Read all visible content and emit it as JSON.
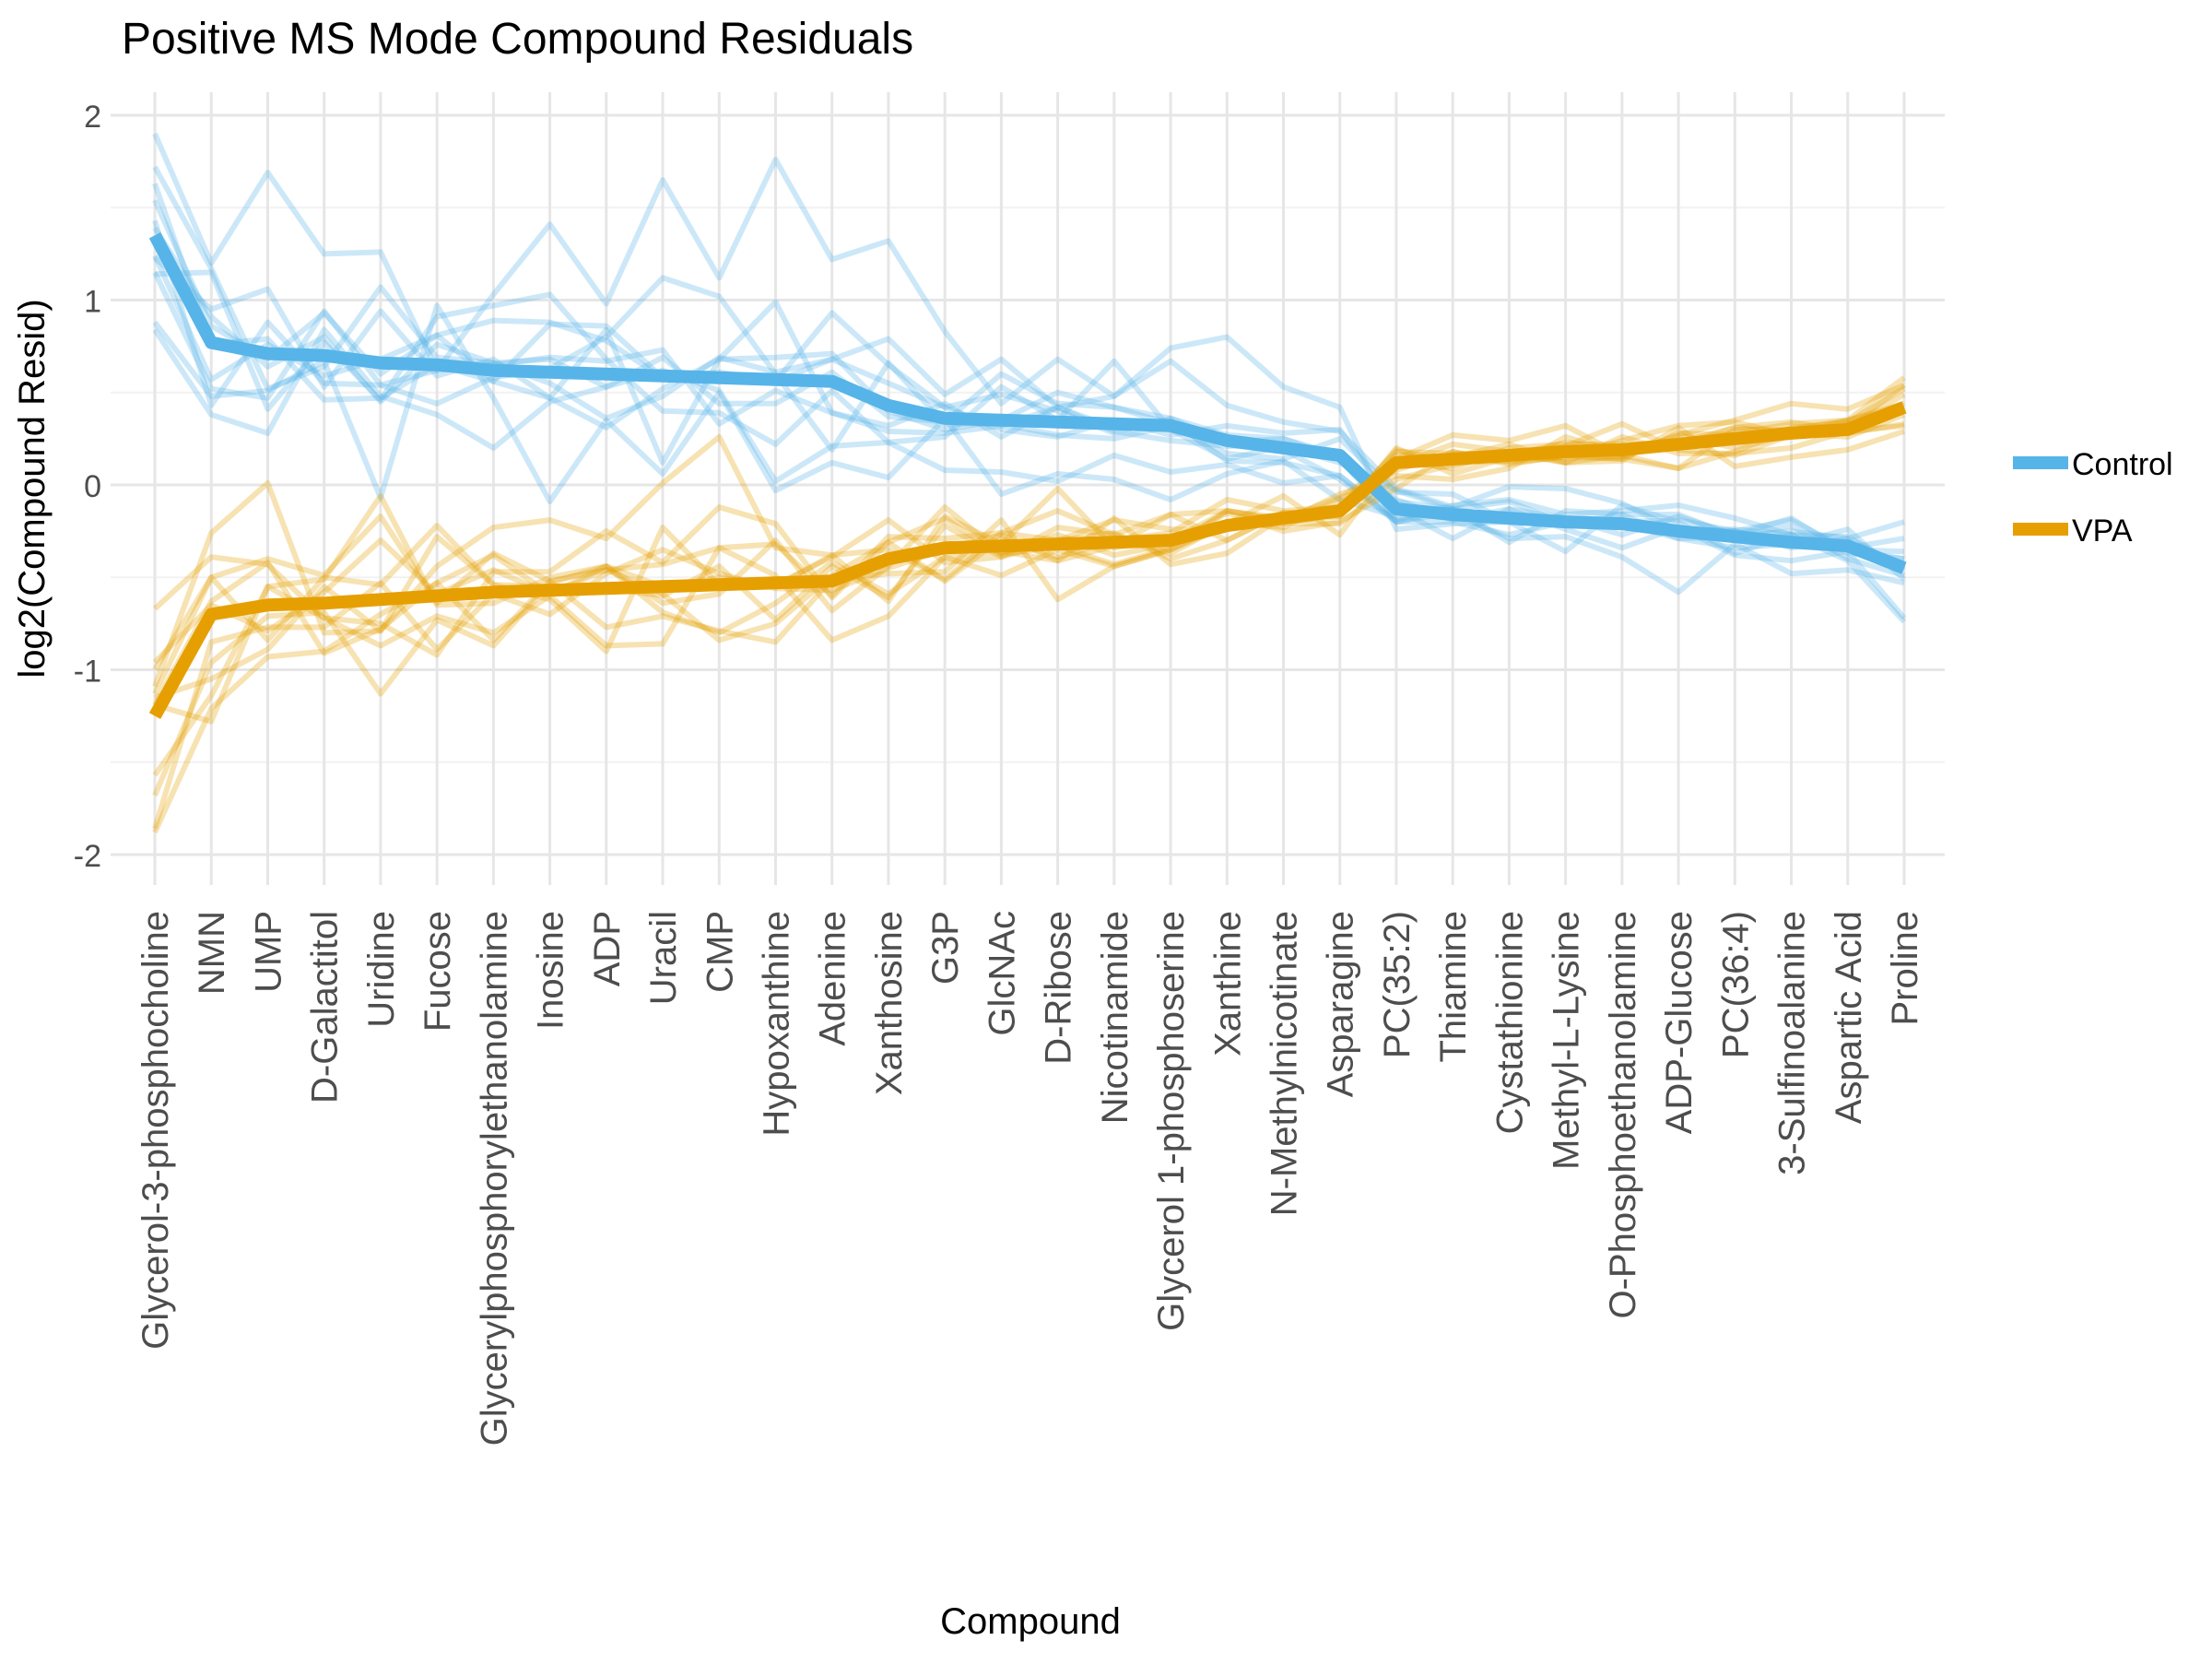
{
  "chart_data": {
    "type": "line",
    "title": "Positive MS Mode Compound Residuals",
    "xlabel": "Compound",
    "ylabel": "log2(Compound Resid)",
    "ylim": [
      -2.2,
      2.1
    ],
    "yticks": [
      2,
      1,
      0,
      -1,
      -2
    ],
    "ytick_labels": [
      "2",
      "1",
      "0",
      "-1",
      "-2"
    ],
    "grid": true,
    "legend_position": "right",
    "categories": [
      "Glycerol-3-phosphocholine",
      "NMN",
      "UMP",
      "D-Galactitol",
      "Uridine",
      "Fucose",
      "Glycerylphosphorylethanolamine",
      "Inosine",
      "ADP",
      "Uracil",
      "CMP",
      "Hypoxanthine",
      "Adenine",
      "Xanthosine",
      "G3P",
      "GlcNAc",
      "D-Ribose",
      "Nicotinamide",
      "Glycerol 1-phosphoserine",
      "Xanthine",
      "N-Methylnicotinate",
      "Asparagine",
      "PC(35:2)",
      "Thiamine",
      "Cystathionine",
      "Methyl-L-Lysine",
      "O-Phosphoethanolamine",
      "ADP-Glucose",
      "PC(36:4)",
      "3-Sulfinoalanine",
      "Aspartic Acid",
      "Proline"
    ],
    "series": [
      {
        "name": "Control",
        "color": "#56B4E9",
        "values": [
          1.35,
          0.77,
          0.71,
          0.7,
          0.66,
          0.65,
          0.62,
          0.61,
          0.6,
          0.59,
          0.58,
          0.57,
          0.56,
          0.43,
          0.36,
          0.35,
          0.34,
          0.33,
          0.32,
          0.24,
          0.2,
          0.16,
          -0.13,
          -0.16,
          -0.18,
          -0.2,
          -0.21,
          -0.25,
          -0.28,
          -0.31,
          -0.33,
          -0.45
        ]
      },
      {
        "name": "VPA",
        "color": "#E69F00",
        "values": [
          -1.25,
          -0.7,
          -0.65,
          -0.64,
          -0.62,
          -0.6,
          -0.58,
          -0.57,
          -0.56,
          -0.55,
          -0.54,
          -0.53,
          -0.52,
          -0.4,
          -0.34,
          -0.33,
          -0.32,
          -0.31,
          -0.3,
          -0.22,
          -0.18,
          -0.14,
          0.12,
          0.14,
          0.16,
          0.18,
          0.19,
          0.22,
          0.25,
          0.28,
          0.3,
          0.42
        ]
      }
    ],
    "replicate_noise": {
      "Control": [
        [
          0.55,
          0.43,
          0.98,
          0.55,
          0.6,
          -0.03,
          0.41,
          0.8,
          0.38,
          1.06,
          0.54,
          1.19,
          0.66,
          0.89,
          0.47,
          0.09,
          0.34,
          0.15,
          0.42,
          0.56,
          0.33,
          0.26,
          -0.11,
          -0.05,
          -0.02,
          -0.16,
          0.1,
          0.05,
          -0.09,
          0.04,
          -0.08,
          -0.29
        ],
        [
          0.19,
          0.09,
          -0.03,
          0.23,
          -0.06,
          0.16,
          -0.06,
          0.26,
          0.26,
          -0.01,
          0.03,
          -0.01,
          0.37,
          0.22,
          0.06,
          0.14,
          0.06,
          -0.05,
          0.04,
          -0.01,
          0.05,
          -0.0,
          0.05,
          -0.03,
          0.05,
          0.02,
          -0.06,
          0.08,
          0.01,
          0.13,
          -0.04,
          0.05
        ],
        [
          -0.47,
          -0.29,
          -0.2,
          -0.03,
          -0.73,
          0.32,
          -0.15,
          -0.7,
          -0.25,
          -0.53,
          -0.08,
          -0.6,
          -0.44,
          -0.39,
          0.0,
          -0.4,
          -0.28,
          -0.3,
          -0.4,
          -0.18,
          -0.07,
          -0.24,
          -0.04,
          0.01,
          -0.11,
          -0.08,
          -0.18,
          -0.33,
          -0.04,
          -0.17,
          -0.13,
          -0.08
        ],
        [
          -0.51,
          -0.39,
          -0.43,
          0.14,
          -0.18,
          -0.27,
          -0.42,
          -0.16,
          -0.07,
          0.03,
          -0.07,
          -0.55,
          -0.35,
          -0.2,
          -0.28,
          -0.28,
          -0.32,
          -0.17,
          -0.25,
          -0.13,
          -0.19,
          -0.11,
          -0.06,
          0.05,
          0.1,
          0.04,
          0.07,
          0.14,
          0.1,
          0.04,
          0.05,
          0.0
        ],
        [
          -0.11,
          -0.2,
          0.05,
          -0.11,
          0.02,
          0.16,
          0.27,
          0.27,
          0.18,
          -0.01,
          -0.01,
          -0.01,
          0.12,
          0.36,
          0.13,
          0.33,
          0.08,
          0.15,
          0.35,
          0.19,
          0.14,
          0.13,
          0.11,
          0.04,
          0.17,
          0.18,
          0.11,
          -0.0,
          0.04,
          0.04,
          -0.02,
          0.09
        ],
        [
          0.37,
          0.4,
          -0.19,
          -0.06,
          0.41,
          0.04,
          0.04,
          -0.06,
          -0.24,
          -0.11,
          0.11,
          0.04,
          0.12,
          0.12,
          0.06,
          -0.05,
          -0.08,
          0.02,
          -0.05,
          0.08,
          0.08,
          0.14,
          -0.0,
          -0.13,
          0.05,
          -0.04,
          -0.13,
          0.02,
          -0.1,
          -0.1,
          -0.03,
          -0.27
        ],
        [
          -0.2,
          -0.25,
          -0.24,
          0.24,
          -0.12,
          -0.21,
          -0.04,
          0.02,
          0.2,
          0.53,
          0.44,
          0.03,
          -0.37,
          0.23,
          -0.03,
          -0.02,
          -0.07,
          -0.08,
          0.0,
          0.0,
          -0.01,
          -0.13,
          -0.07,
          0.03,
          -0.13,
          0.06,
          0.05,
          -0.04,
          -0.0,
          0.09,
          -0.07,
          -0.04
        ],
        [
          0.28,
          -0.01,
          0.08,
          -0.24,
          -0.19,
          0.0,
          -0.06,
          -0.14,
          0.24,
          -0.47,
          0.1,
          0.42,
          -0.17,
          -0.11,
          0.08,
          -0.09,
          0.08,
          -0.02,
          0.03,
          -0.11,
          -0.08,
          -0.11,
          -0.07,
          0.01,
          -0.01,
          0.02,
          -0.0,
          0.01,
          0.03,
          0.12,
          -0.02,
          0.05
        ],
        [
          -0.12,
          0.18,
          0.35,
          -0.17,
          0.28,
          -0.06,
          0.06,
          -0.14,
          -0.29,
          -0.07,
          0.1,
          0.12,
          0.15,
          -0.03,
          -0.06,
          0.0,
          0.16,
          0.09,
          0.01,
          -0.07,
          -0.06,
          0.09,
          0.09,
          0.11,
          -0.02,
          -0.02,
          -0.0,
          -0.04,
          -0.06,
          -0.01,
          0.09,
          -0.06
        ],
        [
          0.08,
          -0.34,
          0.17,
          -0.15,
          -0.12,
          -0.03,
          0.03,
          0.08,
          0.07,
          0.14,
          -0.25,
          -0.06,
          -0.17,
          -0.14,
          -0.08,
          -0.03,
          0.08,
          -0.04,
          -0.08,
          -0.03,
          0.01,
          -0.02,
          -0.07,
          -0.04,
          -0.09,
          -0.0,
          0.01,
          0.06,
          0.03,
          -0.03,
          0.04,
          -0.01
        ],
        [
          0.04,
          0.14,
          -0.07,
          0.1,
          -0.21,
          0.11,
          0.04,
          0.07,
          -0.07,
          0.1,
          -0.14,
          -0.13,
          0.05,
          -0.06,
          -0.02,
          0.25,
          0.1,
          0.09,
          0.04,
          0.03,
          0.05,
          -0.02,
          0.04,
          0.03,
          -0.0,
          -0.02,
          -0.02,
          -0.02,
          0.03,
          -0.01,
          -0.01,
          0.16
        ],
        [
          -0.21,
          0.38,
          -0.3,
          0.07,
          -0.2,
          0.26,
          0.35,
          0.42,
          0.08,
          -0.19,
          -0.19,
          -0.35,
          -0.05,
          -0.2,
          -0.1,
          0.18,
          0.01,
          0.34,
          -0.02,
          -0.1,
          0.01,
          -0.04,
          0.1,
          0.03,
          0.09,
          -0.01,
          0.05,
          0.09,
          0.0,
          0.06,
          0.04,
          0.25
        ]
      ],
      "VPA": [
        [
          0.16,
          0.44,
          0.66,
          -0.16,
          -0.17,
          0.16,
          0.35,
          0.38,
          0.27,
          0.56,
          0.8,
          0.19,
          0.14,
          -0.23,
          0.17,
          0.01,
          0.3,
          -0.03,
          -0.0,
          0.08,
          -0.01,
          0.01,
          0.06,
          0.03,
          0.01,
          -0.06,
          -0.06,
          0.09,
          -0.15,
          -0.13,
          -0.11,
          -0.13
        ],
        [
          0.1,
          -0.35,
          -0.24,
          0.09,
          -0.17,
          0.32,
          0.04,
          -0.05,
          -0.34,
          0.32,
          0.0,
          -0.02,
          0.14,
          0.05,
          -0.17,
          0.07,
          0.18,
          0.04,
          -0.07,
          0.01,
          0.12,
          -0.13,
          0.02,
          0.13,
          0.08,
          0.14,
          -0.03,
          0.05,
          0.1,
          0.16,
          0.11,
          0.12
        ],
        [
          -0.61,
          -0.15,
          -0.12,
          -0.13,
          0.09,
          -0.29,
          -0.01,
          -0.13,
          0.08,
          0.2,
          0.06,
          -0.03,
          -0.05,
          -0.05,
          -0.01,
          0.06,
          -0.09,
          -0.02,
          0.14,
          -0.08,
          0.03,
          -0.02,
          0.07,
          -0.02,
          0.01,
          0.03,
          0.14,
          -0.03,
          -0.09,
          -0.01,
          -0.02,
          -0.09
        ],
        [
          0.58,
          0.31,
          0.22,
          -0.08,
          -0.13,
          -0.32,
          0.11,
          0.1,
          0.31,
          0.13,
          0.42,
          0.32,
          -0.09,
          0.09,
          -0.18,
          0.04,
          -0.07,
          0.01,
          0.04,
          0.14,
          0.04,
          0.02,
          -0.01,
          0.08,
          0.02,
          -0.06,
          0.07,
          -0.05,
          -0.08,
          -0.08,
          -0.01,
          -0.01
        ],
        [
          0.06,
          -0.58,
          0.1,
          0.13,
          0.56,
          -0.05,
          -0.06,
          0.07,
          0.12,
          -0.09,
          -0.05,
          0.23,
          -0.16,
          -0.04,
          0.22,
          -0.04,
          0.05,
          -0.07,
          -0.02,
          0.07,
          -0.07,
          -0.06,
          -0.14,
          0.04,
          -0.04,
          -0.03,
          0.05,
          0.1,
          0.09,
          -0.01,
          0.01,
          0.12
        ],
        [
          0.25,
          0.2,
          -0.19,
          0.14,
          0.08,
          0.38,
          0.04,
          0.02,
          0.0,
          -0.05,
          0.1,
          -0.2,
          0.08,
          -0.21,
          0.12,
          -0.06,
          0.02,
          0.05,
          -0.1,
          -0.08,
          0.03,
          0.0,
          0.04,
          -0.02,
          -0.03,
          -0.03,
          -0.05,
          -0.13,
          -0.07,
          0.03,
          0.04,
          0.1
        ],
        [
          -0.43,
          -0.26,
          -0.06,
          -0.05,
          -0.51,
          -0.13,
          -0.29,
          0.04,
          0.12,
          -0.14,
          -0.26,
          -0.11,
          0.1,
          -0.19,
          -0.05,
          -0.03,
          -0.09,
          0.13,
          -0.13,
          -0.15,
          0.01,
          -0.03,
          0.01,
          -0.05,
          0.04,
          0.04,
          0.03,
          -0.01,
          0.06,
          -0.0,
          -0.04,
          -0.04
        ],
        [
          -0.32,
          -0.44,
          0.1,
          -0.08,
          -0.25,
          -0.11,
          -0.22,
          -0.03,
          -0.31,
          -0.31,
          0.2,
          0.04,
          -0.32,
          -0.31,
          -0.05,
          -0.16,
          -0.03,
          -0.13,
          -0.05,
          0.0,
          -0.03,
          -0.07,
          -0.09,
          -0.03,
          0.0,
          0.05,
          0.01,
          -0.01,
          0.03,
          0.05,
          0.05,
          0.02
        ],
        [
          0.06,
          0.07,
          0.23,
          -0.27,
          -0.16,
          0.07,
          0.2,
          -0.02,
          0.1,
          -0.04,
          -0.3,
          -0.22,
          0.03,
          0.09,
          0.16,
          -0.05,
          -0.01,
          -0.12,
          -0.04,
          0.08,
          -0.02,
          0.09,
          -0.07,
          -0.11,
          -0.07,
          0.08,
          -0.02,
          0.01,
          0.06,
          0.06,
          -0.01,
          -0.1
        ],
        [
          0.12,
          0.2,
          0.25,
          0.15,
          0.45,
          -0.04,
          0.21,
          0.05,
          0.1,
          0.12,
          0.2,
          0.21,
          -0.08,
          0.12,
          0.05,
          0.07,
          0.02,
          0.12,
          0.06,
          -0.02,
          -0.02,
          -0.03,
          0.08,
          -0.08,
          -0.01,
          -0.02,
          -0.04,
          0.05,
          -0.05,
          -0.01,
          0.05,
          -0.0
        ],
        [
          -0.63,
          -0.51,
          -0.28,
          -0.26,
          -0.08,
          0.07,
          -0.26,
          0.05,
          -0.21,
          -0.16,
          -0.25,
          -0.32,
          0.01,
          -0.08,
          -0.13,
          0.14,
          -0.3,
          -0.13,
          -0.05,
          0.02,
          -0.05,
          0.06,
          -0.04,
          0.04,
          -0.05,
          -0.02,
          -0.05,
          0.06,
          0.02,
          -0.02,
          0.01,
          0.07
        ],
        [
          0.29,
          0.05,
          -0.14,
          0.06,
          0.32,
          0.01,
          0.12,
          -0.02,
          0.12,
          0.0,
          0.04,
          -0.01,
          0.13,
          0.21,
          -0.08,
          -0.06,
          0.09,
          0.04,
          0.14,
          0.08,
          0.0,
          0.07,
          0.01,
          0.01,
          0.06,
          -0.06,
          -0.03,
          -0.13,
          0.05,
          0.02,
          0.05,
          0.16
        ]
      ]
    }
  }
}
